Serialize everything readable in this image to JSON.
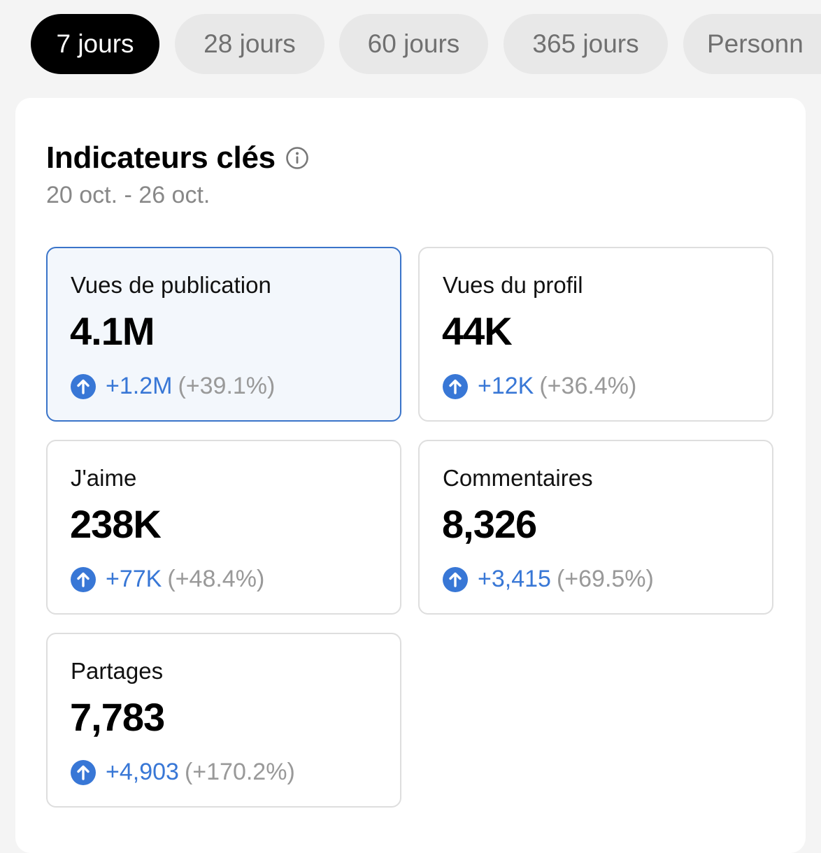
{
  "tabs": [
    {
      "label": "7 jours",
      "active": true
    },
    {
      "label": "28 jours",
      "active": false
    },
    {
      "label": "60 jours",
      "active": false
    },
    {
      "label": "365 jours",
      "active": false
    },
    {
      "label": "Personn",
      "active": false
    }
  ],
  "section": {
    "title": "Indicateurs clés",
    "info_icon": "info-icon",
    "date_range": "20 oct. - 26 oct."
  },
  "metrics": [
    {
      "label": "Vues de publication",
      "value": "4.1M",
      "delta": "+1.2M",
      "pct": "(+39.1%)",
      "selected": true,
      "trend_icon": "arrow-up-circle-icon"
    },
    {
      "label": "Vues du profil",
      "value": "44K",
      "delta": "+12K",
      "pct": "(+36.4%)",
      "selected": false,
      "trend_icon": "arrow-up-circle-icon"
    },
    {
      "label": "J'aime",
      "value": "238K",
      "delta": "+77K",
      "pct": "(+48.4%)",
      "selected": false,
      "trend_icon": "arrow-up-circle-icon"
    },
    {
      "label": "Commentaires",
      "value": "8,326",
      "delta": "+3,415",
      "pct": "(+69.5%)",
      "selected": false,
      "trend_icon": "arrow-up-circle-icon"
    },
    {
      "label": "Partages",
      "value": "7,783",
      "delta": "+4,903",
      "pct": "(+170.2%)",
      "selected": false,
      "trend_icon": "arrow-up-circle-icon"
    }
  ],
  "colors": {
    "accent": "#3877d6",
    "selected_border": "#3a74c9",
    "selected_bg": "#f3f7fc",
    "active_tab_bg": "#000000"
  }
}
